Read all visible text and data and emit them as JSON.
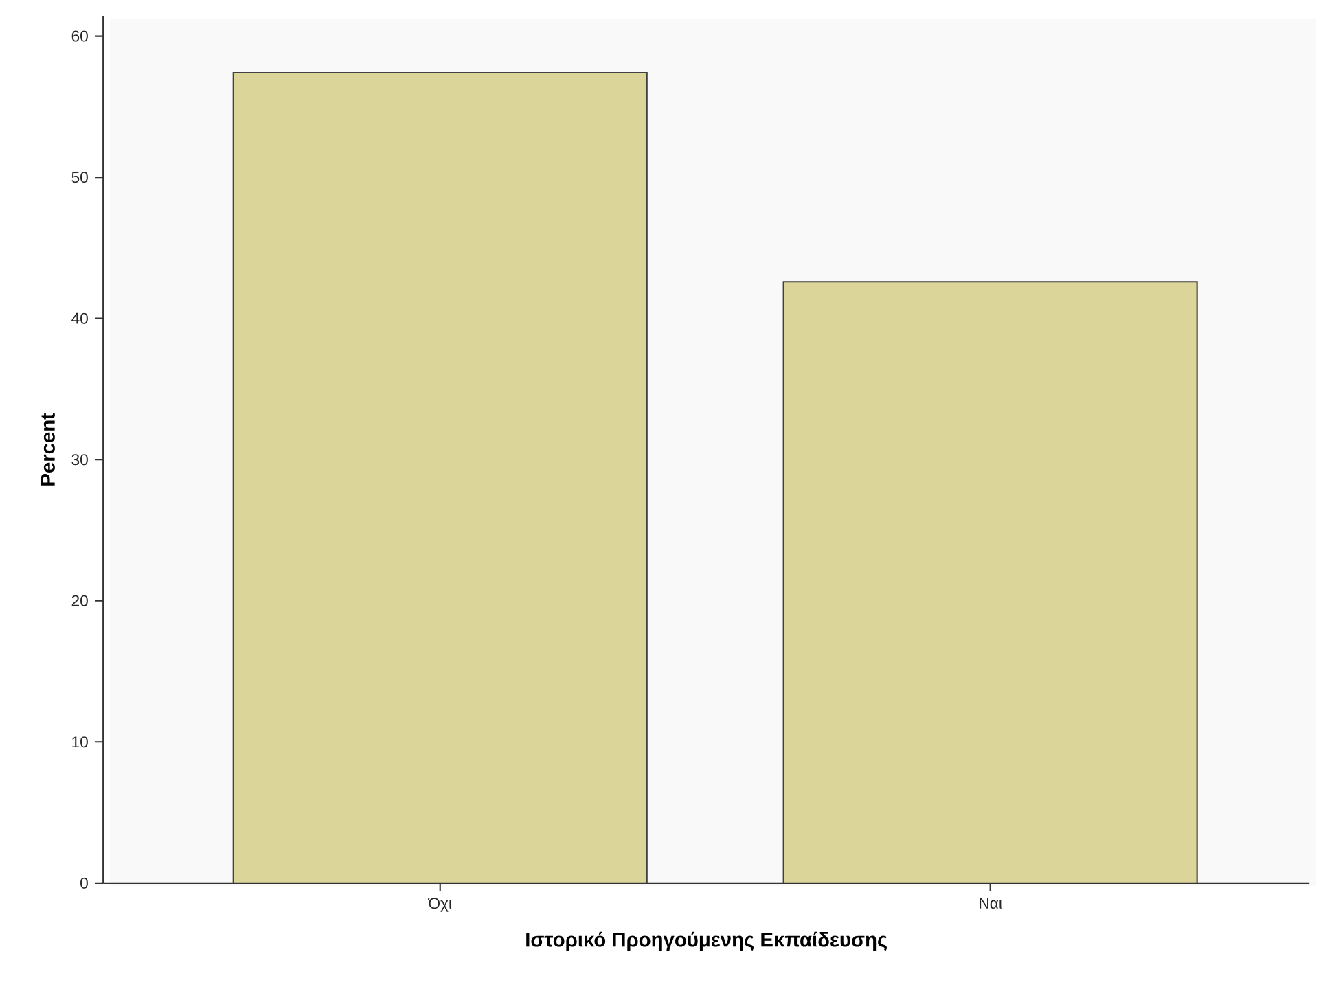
{
  "chart_data": {
    "type": "bar",
    "xlabel": "Ιστορικό Προηγούμενης Εκπαίδευσης",
    "ylabel": "Percent",
    "categories": [
      "Όχι",
      "Ναι"
    ],
    "values": [
      57.4,
      42.6
    ],
    "color": "#dcd59a",
    "ylim": [
      0,
      61.4
    ],
    "yticks": [
      0,
      10,
      20,
      30,
      40,
      50,
      60
    ]
  }
}
